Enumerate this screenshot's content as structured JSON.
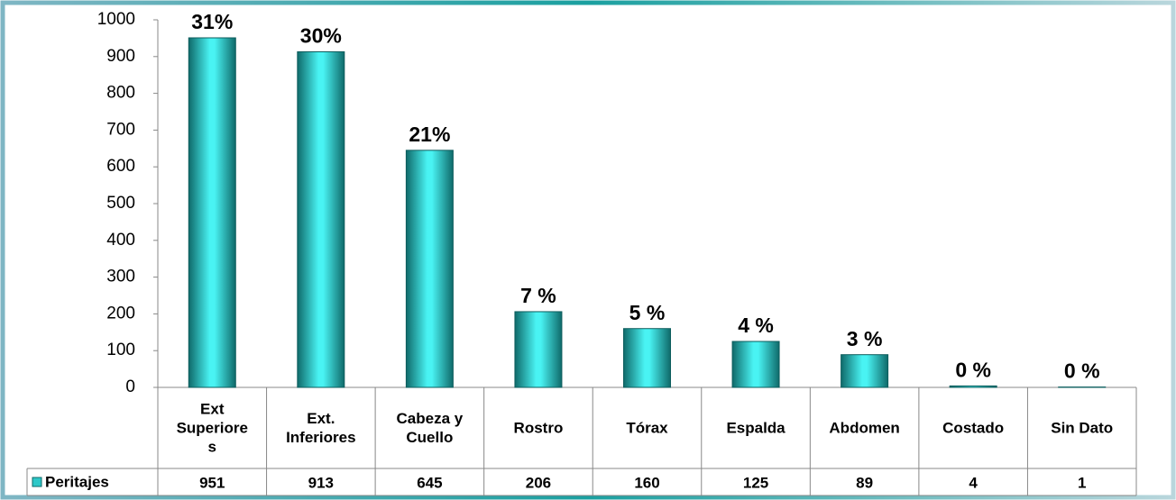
{
  "chart_data": {
    "type": "bar",
    "categories": [
      "Ext Superiores",
      "Ext. Inferiores",
      "Cabeza y Cuello",
      "Rostro",
      "Tórax",
      "Espalda",
      "Abdomen",
      "Costado",
      "Sin Dato"
    ],
    "series": [
      {
        "name": "Peritajes",
        "color": "#2ec8c8",
        "values": [
          951,
          913,
          645,
          206,
          160,
          125,
          89,
          4,
          1
        ]
      }
    ],
    "percent_labels": [
      "31%",
      "30%",
      "21%",
      "7 %",
      "5 %",
      "4 %",
      "3 %",
      "0 %",
      "0 %"
    ],
    "ylim": [
      0,
      1000
    ],
    "yticks": [
      0,
      100,
      200,
      300,
      400,
      500,
      600,
      700,
      800,
      900,
      1000
    ],
    "grid": false
  }
}
